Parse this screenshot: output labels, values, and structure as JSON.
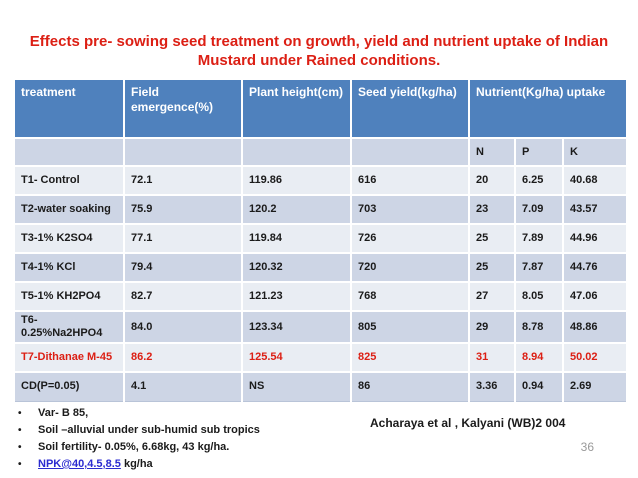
{
  "title": {
    "line1": "Effects pre-  sowing seed treatment  on growth, yield and nutrient uptake  of Indian",
    "line2": "Mustard under Rained conditions."
  },
  "table": {
    "header": {
      "treatment": "treatment",
      "field_emergence": "Field emergence(%)",
      "plant_height": "Plant height(cm)",
      "seed_yield": "Seed yield(kg/ha)",
      "nutrient_uptake": "Nutrient(Kg/ha) uptake",
      "subcols": [
        "N",
        "P",
        "K"
      ]
    },
    "rows": [
      {
        "treatment": "T1- Control",
        "field_emergence": "72.1",
        "plant_height": "119.86",
        "seed_yield": "616",
        "n": "20",
        "p": "6.25",
        "k": "40.68",
        "highlight": false
      },
      {
        "treatment": "T2-water soaking",
        "field_emergence": "75.9",
        "plant_height": "120.2",
        "seed_yield": "703",
        "n": "23",
        "p": "7.09",
        "k": "43.57",
        "highlight": false
      },
      {
        "treatment": "T3-1% K2SO4",
        "field_emergence": "77.1",
        "plant_height": "119.84",
        "seed_yield": "726",
        "n": "25",
        "p": "7.89",
        "k": "44.96",
        "highlight": false
      },
      {
        "treatment": "T4-1% KCl",
        "field_emergence": "79.4",
        "plant_height": "120.32",
        "seed_yield": "720",
        "n": "25",
        "p": "7.87",
        "k": "44.76",
        "highlight": false
      },
      {
        "treatment": "T5-1% KH2PO4",
        "field_emergence": "82.7",
        "plant_height": "121.23",
        "seed_yield": "768",
        "n": "27",
        "p": "8.05",
        "k": "47.06",
        "highlight": false
      },
      {
        "treatment": "T6- 0.25%Na2HPO4",
        "field_emergence": "84.0",
        "plant_height": "123.34",
        "seed_yield": "805",
        "n": "29",
        "p": "8.78",
        "k": "48.86",
        "highlight": false
      },
      {
        "treatment": "T7-Dithanae M-45",
        "field_emergence": "86.2",
        "plant_height": "125.54",
        "seed_yield": "825",
        "n": "31",
        "p": "8.94",
        "k": "50.02",
        "highlight": true
      },
      {
        "treatment": "CD(P=0.05)",
        "field_emergence": "4.1",
        "plant_height": "NS",
        "seed_yield": "86",
        "n": "3.36",
        "p": "0.94",
        "k": "2.69",
        "highlight": false
      }
    ]
  },
  "footnotes": [
    "Var- B 85,",
    "Soil –alluvial under  sub-humid sub tropics",
    "Soil fertility- 0.05%, 6.68kg, 43 kg/ha.",
    {
      "link": "NPK@40,4.5,8.5",
      "text": " kg/ha"
    }
  ],
  "attribution": "Acharaya et al , Kalyani (WB)2 004",
  "page_number": "36",
  "colors": {
    "title_red": "#dc1f14",
    "highlight_red": "#dc1f14",
    "header_blue": "#4f81bd",
    "band_dark": "#cdd5e5",
    "band_light": "#e9edf3",
    "link_blue": "#2b2bd0",
    "page_gray": "#9a9a9a"
  }
}
